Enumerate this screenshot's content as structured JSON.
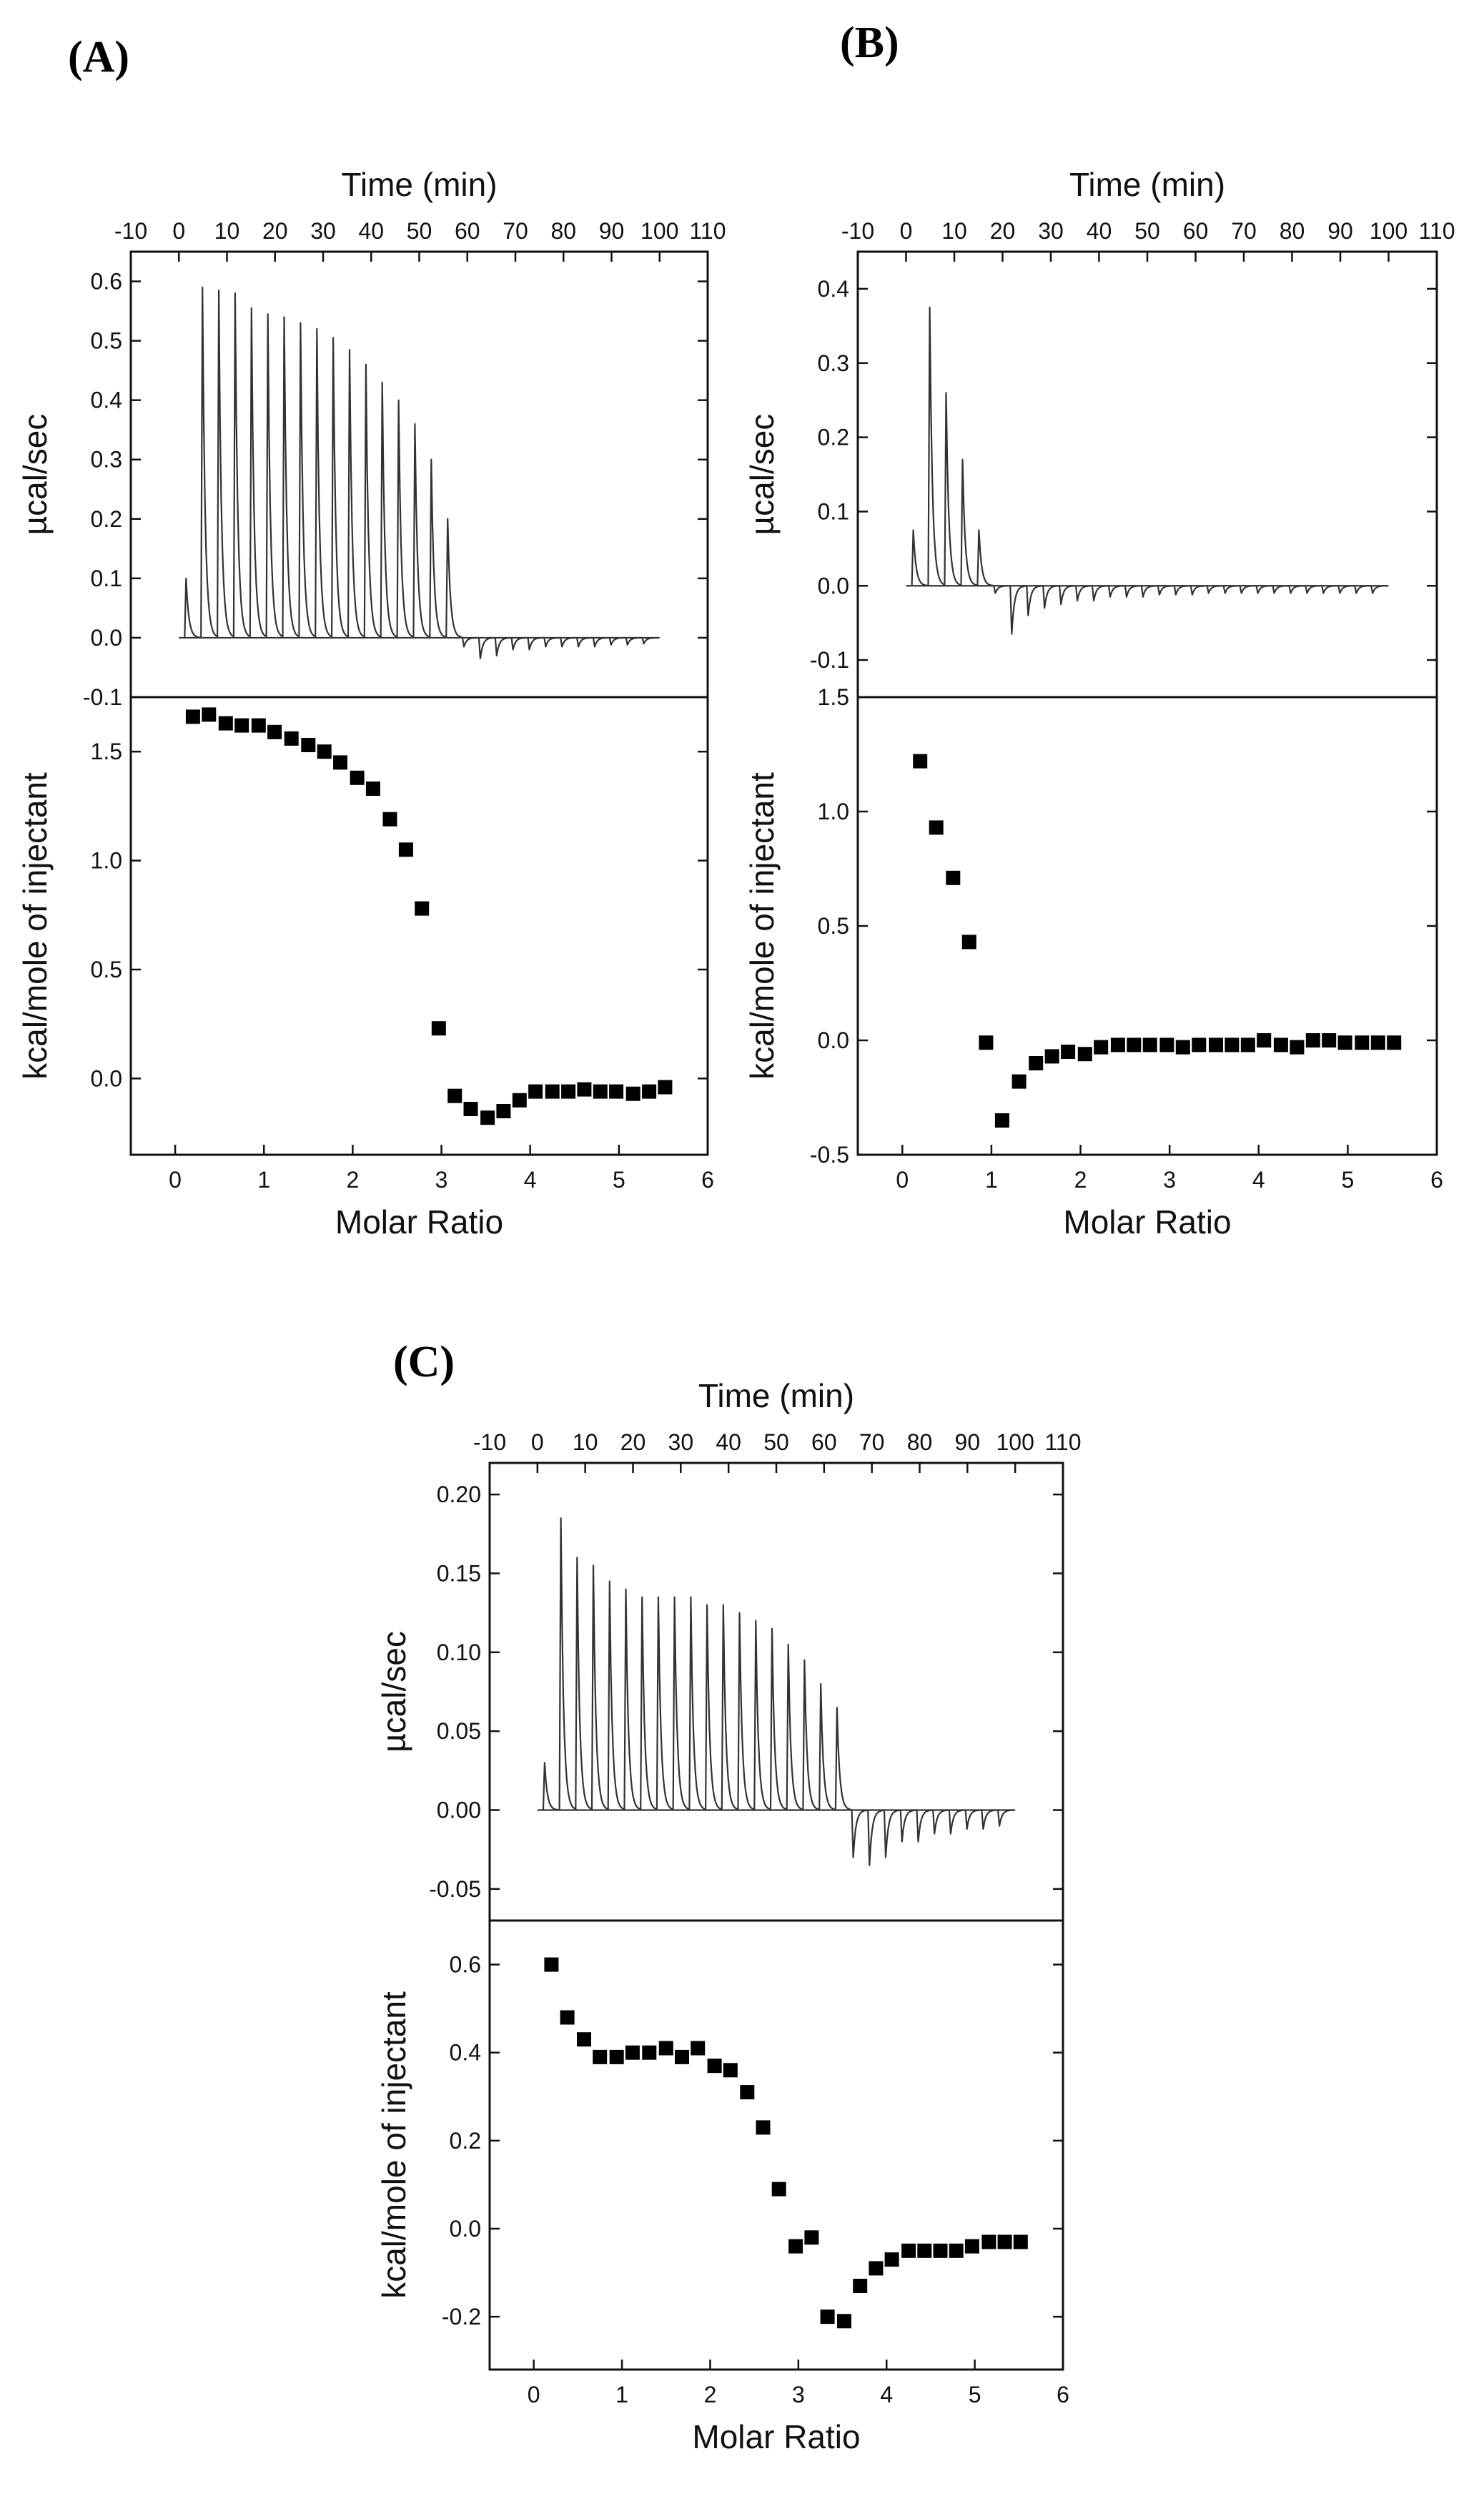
{
  "figure_labels": [
    "(A)",
    "(B)",
    "(C)"
  ],
  "chart_data": [
    {
      "panel": "(A)",
      "type": "line",
      "title": "",
      "xlabel": "Time (min)",
      "ylabel": "µcal/sec",
      "xlim": [
        -10,
        110
      ],
      "ylim": [
        -0.1,
        0.65
      ],
      "xticks": [
        -10,
        0,
        10,
        20,
        30,
        40,
        50,
        60,
        70,
        80,
        90,
        100,
        110
      ],
      "yticks": [
        -0.1,
        0.0,
        0.1,
        0.2,
        0.3,
        0.4,
        0.5,
        0.6
      ],
      "xtick_labels": [
        "-10",
        "0",
        "10",
        "20",
        "30",
        "40",
        "50",
        "60",
        "70",
        "80",
        "90",
        "100",
        "110"
      ],
      "ytick_labels": [
        "-0.1",
        "0.0",
        "0.1",
        "0.2",
        "0.3",
        "0.4",
        "0.5",
        "0.6"
      ],
      "baseline_start": 0,
      "baseline_end": 100,
      "injection_times": [
        1.5,
        4.9,
        8.3,
        11.7,
        15.1,
        18.5,
        21.9,
        25.3,
        28.7,
        32.1,
        35.5,
        38.9,
        42.3,
        45.7,
        49.1,
        52.5,
        55.9,
        59.3,
        62.7,
        66.1,
        69.5,
        72.9,
        76.3,
        79.7,
        83.1,
        86.5,
        89.9,
        93.3,
        96.7
      ],
      "peak_heights": [
        0.1,
        0.59,
        0.585,
        0.58,
        0.555,
        0.545,
        0.54,
        0.53,
        0.52,
        0.505,
        0.485,
        0.46,
        0.43,
        0.4,
        0.36,
        0.3,
        0.2,
        -0.015,
        -0.035,
        -0.03,
        -0.02,
        -0.02,
        -0.015,
        -0.015,
        -0.015,
        -0.015,
        -0.012,
        -0.012,
        -0.01
      ]
    },
    {
      "panel": "(A)",
      "type": "scatter",
      "xlabel": "Molar Ratio",
      "ylabel": "kcal/mole of injectant",
      "xlim": [
        -0.5,
        6
      ],
      "ylim": [
        -0.35,
        1.75
      ],
      "xticks": [
        0,
        1,
        2,
        3,
        4,
        5,
        6
      ],
      "yticks": [
        0.0,
        0.5,
        1.0,
        1.5
      ],
      "xtick_labels": [
        "0",
        "1",
        "2",
        "3",
        "4",
        "5",
        "6"
      ],
      "ytick_labels": [
        "0.0",
        "0.5",
        "1.0",
        "1.5"
      ],
      "x": [
        0.2,
        0.38,
        0.57,
        0.75,
        0.94,
        1.12,
        1.31,
        1.5,
        1.68,
        1.86,
        2.05,
        2.23,
        2.42,
        2.6,
        2.78,
        2.97,
        3.15,
        3.33,
        3.52,
        3.7,
        3.88,
        4.06,
        4.25,
        4.43,
        4.61,
        4.79,
        4.97,
        5.16,
        5.34,
        5.52
      ],
      "y": [
        1.66,
        1.67,
        1.63,
        1.62,
        1.62,
        1.59,
        1.56,
        1.53,
        1.5,
        1.45,
        1.38,
        1.33,
        1.19,
        1.05,
        0.78,
        0.23,
        -0.08,
        -0.14,
        -0.18,
        -0.15,
        -0.1,
        -0.06,
        -0.06,
        -0.06,
        -0.05,
        -0.06,
        -0.06,
        -0.07,
        -0.06,
        -0.04
      ]
    },
    {
      "panel": "(B)",
      "type": "line",
      "title": "",
      "xlabel": "Time (min)",
      "ylabel": "µcal/sec",
      "xlim": [
        -10,
        110
      ],
      "ylim": [
        -0.15,
        0.45
      ],
      "xticks": [
        -10,
        0,
        10,
        20,
        30,
        40,
        50,
        60,
        70,
        80,
        90,
        100,
        110
      ],
      "yticks": [
        -0.1,
        0.0,
        0.1,
        0.2,
        0.3,
        0.4
      ],
      "xtick_labels": [
        "-10",
        "0",
        "10",
        "20",
        "30",
        "40",
        "50",
        "60",
        "70",
        "80",
        "90",
        "100",
        "110"
      ],
      "ytick_labels": [
        "-0.1",
        "0.0",
        "0.1",
        "0.2",
        "0.3",
        "0.4"
      ],
      "baseline_start": 0,
      "baseline_end": 100,
      "injection_times": [
        1.5,
        4.9,
        8.3,
        11.7,
        15.1,
        18.5,
        21.9,
        25.3,
        28.7,
        32.1,
        35.5,
        38.9,
        42.3,
        45.7,
        49.1,
        52.5,
        55.9,
        59.3,
        62.7,
        66.1,
        69.5,
        72.9,
        76.3,
        79.7,
        83.1,
        86.5,
        89.9,
        93.3,
        96.7
      ],
      "peak_heights": [
        0.075,
        0.375,
        0.26,
        0.17,
        0.075,
        -0.01,
        -0.065,
        -0.04,
        -0.03,
        -0.025,
        -0.02,
        -0.02,
        -0.015,
        -0.015,
        -0.015,
        -0.012,
        -0.012,
        -0.012,
        -0.01,
        -0.01,
        -0.01,
        -0.01,
        -0.01,
        -0.01,
        -0.01,
        -0.01,
        -0.01,
        -0.01,
        -0.01
      ]
    },
    {
      "panel": "(B)",
      "type": "scatter",
      "xlabel": "Molar Ratio",
      "ylabel": "kcal/mole of injectant",
      "xlim": [
        -0.5,
        6
      ],
      "ylim": [
        -0.5,
        1.5
      ],
      "xticks": [
        0,
        1,
        2,
        3,
        4,
        5,
        6
      ],
      "yticks": [
        -0.5,
        0.0,
        0.5,
        1.0,
        1.5
      ],
      "xtick_labels": [
        "0",
        "1",
        "2",
        "3",
        "4",
        "5",
        "6"
      ],
      "ytick_labels": [
        "-0.5",
        "0.0",
        "0.5",
        "1.0",
        "1.5"
      ],
      "x": [
        0.2,
        0.38,
        0.57,
        0.75,
        0.94,
        1.12,
        1.31,
        1.5,
        1.68,
        1.86,
        2.05,
        2.23,
        2.42,
        2.6,
        2.78,
        2.97,
        3.15,
        3.33,
        3.52,
        3.7,
        3.88,
        4.06,
        4.25,
        4.43,
        4.61,
        4.79,
        4.97,
        5.16,
        5.34,
        5.52
      ],
      "y": [
        1.22,
        0.93,
        0.71,
        0.43,
        -0.01,
        -0.35,
        -0.18,
        -0.1,
        -0.07,
        -0.05,
        -0.06,
        -0.03,
        -0.02,
        -0.02,
        -0.02,
        -0.02,
        -0.03,
        -0.02,
        -0.02,
        -0.02,
        -0.02,
        0.0,
        -0.02,
        -0.03,
        0.0,
        0.0,
        -0.01,
        -0.01,
        -0.01,
        -0.01
      ]
    },
    {
      "panel": "(C)",
      "type": "line",
      "title": "",
      "xlabel": "Time (min)",
      "ylabel": "µcal/sec",
      "xlim": [
        -10,
        110
      ],
      "ylim": [
        -0.07,
        0.22
      ],
      "xticks": [
        -10,
        0,
        10,
        20,
        30,
        40,
        50,
        60,
        70,
        80,
        90,
        100,
        110
      ],
      "yticks": [
        -0.05,
        0.0,
        0.05,
        0.1,
        0.15,
        0.2
      ],
      "xtick_labels": [
        "-10",
        "0",
        "10",
        "20",
        "30",
        "40",
        "50",
        "60",
        "70",
        "80",
        "90",
        "100",
        "110"
      ],
      "ytick_labels": [
        "-0.05",
        "0.00",
        "0.05",
        "0.10",
        "0.15",
        "0.20"
      ],
      "baseline_start": 0,
      "baseline_end": 100,
      "injection_times": [
        1.5,
        4.9,
        8.3,
        11.7,
        15.1,
        18.5,
        21.9,
        25.3,
        28.7,
        32.1,
        35.5,
        38.9,
        42.3,
        45.7,
        49.1,
        52.5,
        55.9,
        59.3,
        62.7,
        66.1,
        69.5,
        72.9,
        76.3,
        79.7,
        83.1,
        86.5,
        89.9,
        93.3,
        96.7
      ],
      "peak_heights": [
        0.03,
        0.185,
        0.16,
        0.155,
        0.145,
        0.14,
        0.135,
        0.135,
        0.135,
        0.135,
        0.13,
        0.13,
        0.125,
        0.12,
        0.115,
        0.105,
        0.095,
        0.08,
        0.065,
        -0.03,
        -0.035,
        -0.03,
        -0.02,
        -0.02,
        -0.015,
        -0.015,
        -0.012,
        -0.012,
        -0.01
      ]
    },
    {
      "panel": "(C)",
      "type": "scatter",
      "xlabel": "Molar Ratio",
      "ylabel": "kcal/mole of injectant",
      "xlim": [
        -0.5,
        6
      ],
      "ylim": [
        -0.32,
        0.7
      ],
      "xticks": [
        0,
        1,
        2,
        3,
        4,
        5,
        6
      ],
      "yticks": [
        -0.2,
        0.0,
        0.2,
        0.4,
        0.6
      ],
      "xtick_labels": [
        "0",
        "1",
        "2",
        "3",
        "4",
        "5",
        "6"
      ],
      "ytick_labels": [
        "-0.2",
        "0.0",
        "0.2",
        "0.4",
        "0.6"
      ],
      "x": [
        0.2,
        0.38,
        0.57,
        0.75,
        0.94,
        1.12,
        1.31,
        1.5,
        1.68,
        1.86,
        2.05,
        2.23,
        2.42,
        2.6,
        2.78,
        2.97,
        3.15,
        3.33,
        3.52,
        3.7,
        3.88,
        4.06,
        4.25,
        4.43,
        4.61,
        4.79,
        4.97,
        5.16,
        5.34,
        5.52
      ],
      "y": [
        0.6,
        0.48,
        0.43,
        0.39,
        0.39,
        0.4,
        0.4,
        0.41,
        0.39,
        0.41,
        0.37,
        0.36,
        0.31,
        0.23,
        0.09,
        -0.04,
        -0.02,
        -0.2,
        -0.21,
        -0.13,
        -0.09,
        -0.07,
        -0.05,
        -0.05,
        -0.05,
        -0.05,
        -0.04,
        -0.03,
        -0.03,
        -0.03
      ]
    }
  ]
}
